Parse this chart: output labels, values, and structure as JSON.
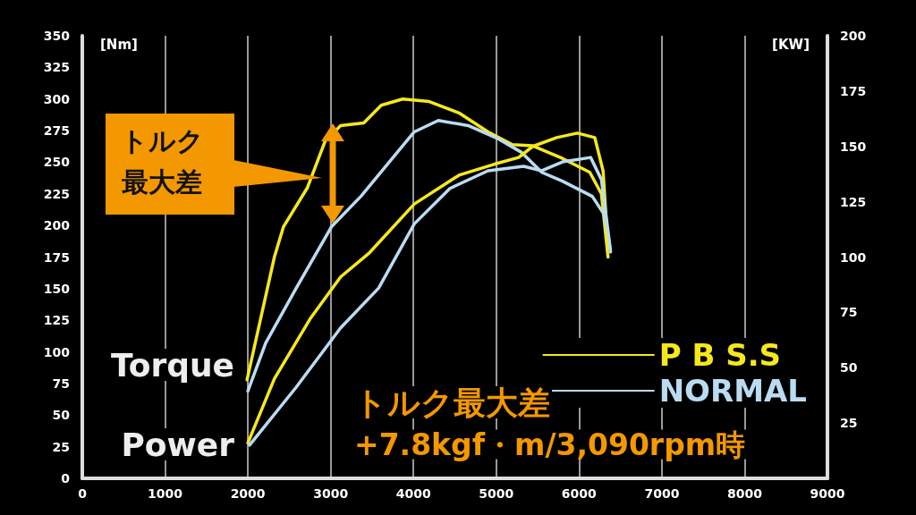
{
  "chart_data": {
    "type": "line",
    "ylabel": "[Nm]",
    "y2label": "[KW]",
    "xlim": [
      0,
      9000
    ],
    "xticks": [
      0,
      1000,
      2000,
      3000,
      4000,
      5000,
      6000,
      7000,
      8000,
      9000
    ],
    "ylim": [
      0,
      350
    ],
    "yticks": [
      0,
      25,
      50,
      75,
      100,
      125,
      150,
      175,
      200,
      225,
      250,
      275,
      300,
      325,
      350
    ],
    "y2lim": [
      0,
      200
    ],
    "y2ticks": [
      25,
      50,
      75,
      100,
      125,
      150,
      175,
      200
    ],
    "grid": "x",
    "legend": "bottom right",
    "marker": "none",
    "line_style": "solid",
    "series": [
      {
        "name": "P B S.S",
        "color": "#f7e81c",
        "x": [
          1990,
          2320,
          2430,
          2720,
          2935,
          3120,
          3400,
          3610,
          3870,
          4190,
          4550,
          4900,
          5190,
          5440,
          5800,
          6130,
          6270,
          6350
        ],
        "values": [
          78,
          175,
          199,
          230,
          267,
          279,
          281,
          295,
          300,
          298,
          289,
          274,
          264,
          263,
          253,
          242,
          225,
          175
        ]
      },
      {
        "name": "NORMAL",
        "color": "#b9dcf2",
        "x": [
          2000,
          2215,
          2580,
          3010,
          3365,
          3655,
          4010,
          4300,
          4660,
          5010,
          5300,
          5550,
          5800,
          6160,
          6300,
          6380
        ],
        "values": [
          69,
          107,
          150,
          199,
          223,
          246,
          274,
          283,
          279,
          269,
          258,
          242,
          235,
          223,
          209,
          179
        ]
      },
      {
        "color": "#f7e81c",
        "axis": "y2",
        "x": [
          2000,
          2320,
          2750,
          3120,
          3470,
          4010,
          4550,
          4980,
          5270,
          5440,
          5730,
          5980,
          6190,
          6290,
          6350
        ],
        "values": [
          16,
          45,
          72,
          91,
          102,
          124,
          137,
          142,
          145,
          150,
          154,
          156,
          154,
          139,
          104
        ]
      },
      {
        "color": "#b9dcf2",
        "axis": "y2",
        "x": [
          2020,
          2580,
          3120,
          3580,
          4010,
          4440,
          4900,
          5330,
          5550,
          5800,
          6140,
          6270,
          6380
        ],
        "values": [
          15,
          41,
          68,
          86,
          115,
          131,
          139,
          141,
          139,
          143,
          145,
          135,
          103
        ]
      }
    ],
    "annotations": [
      "Torque",
      "Power",
      "トルク最大差",
      "トルク最大差",
      "+7.8kgf・m/3,090rpm時"
    ]
  }
}
